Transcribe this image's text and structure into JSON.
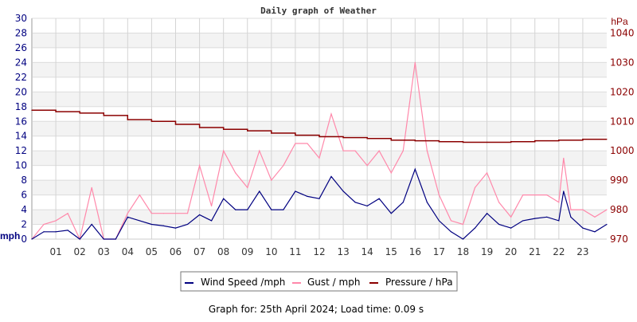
{
  "chart_data": {
    "type": "line",
    "title": "Daily graph of Weather",
    "left_axis": {
      "label": "mph",
      "range": [
        0,
        30
      ],
      "ticks": [
        0,
        2,
        4,
        6,
        8,
        10,
        12,
        14,
        16,
        18,
        20,
        22,
        24,
        26,
        28,
        30
      ],
      "color": "#000080"
    },
    "right_axis": {
      "label": "hPa",
      "range": [
        970,
        1045
      ],
      "ticks": [
        970,
        980,
        990,
        1000,
        1010,
        1020,
        1030,
        1040
      ],
      "color": "#8b0000"
    },
    "x_axis": {
      "range": [
        0,
        24
      ],
      "tick_labels": [
        "01",
        "02",
        "03",
        "04",
        "05",
        "06",
        "07",
        "08",
        "09",
        "10",
        "11",
        "12",
        "13",
        "14",
        "15",
        "16",
        "17",
        "18",
        "19",
        "20",
        "21",
        "22",
        "23"
      ]
    },
    "grid": true,
    "legend_position": "bottom",
    "series": [
      {
        "name": "Wind Speed /mph",
        "color": "#000080",
        "axis": "left",
        "x": [
          0,
          0.5,
          1,
          1.5,
          2,
          2.5,
          3,
          3.5,
          4,
          4.5,
          5,
          5.5,
          6,
          6.5,
          7,
          7.5,
          8,
          8.5,
          9,
          9.5,
          10,
          10.5,
          11,
          11.5,
          12,
          12.5,
          13,
          13.5,
          14,
          14.5,
          15,
          15.5,
          16,
          16.5,
          17,
          17.5,
          18,
          18.5,
          19,
          19.5,
          20,
          20.5,
          21,
          21.5,
          22,
          22.2,
          22.5,
          23,
          23.5,
          24
        ],
        "values": [
          0,
          1.0,
          1.0,
          1.2,
          0,
          2.0,
          0,
          0,
          3.0,
          2.5,
          2.0,
          1.8,
          1.5,
          2.0,
          3.3,
          2.5,
          5.5,
          4.0,
          4.0,
          6.5,
          4.0,
          4.0,
          6.5,
          5.8,
          5.5,
          8.5,
          6.5,
          5.0,
          4.5,
          5.5,
          3.5,
          5.0,
          9.5,
          5.0,
          2.5,
          1.0,
          0,
          1.5,
          3.5,
          2.0,
          1.5,
          2.5,
          2.8,
          3.0,
          2.5,
          6.5,
          3.0,
          1.5,
          1.0,
          2.0
        ]
      },
      {
        "name": "Gust / mph",
        "color": "#ff88aa",
        "axis": "left",
        "x": [
          0,
          0.5,
          1,
          1.5,
          2,
          2.5,
          3,
          3.5,
          4,
          4.5,
          5,
          5.5,
          6,
          6.5,
          7,
          7.5,
          8,
          8.5,
          9,
          9.5,
          10,
          10.5,
          11,
          11.5,
          12,
          12.5,
          13,
          13.5,
          14,
          14.5,
          15,
          15.5,
          16,
          16.5,
          17,
          17.5,
          18,
          18.5,
          19,
          19.5,
          20,
          20.5,
          21,
          21.5,
          22,
          22.2,
          22.5,
          23,
          23.5,
          24
        ],
        "values": [
          0,
          2,
          2.5,
          3.5,
          0,
          7,
          0,
          0,
          3.5,
          6,
          3.5,
          3.5,
          3.5,
          3.5,
          10,
          4.5,
          12,
          9,
          7,
          12,
          8,
          10,
          13,
          13,
          11,
          17,
          12,
          12,
          10,
          12,
          9,
          12,
          24,
          12,
          6,
          2.5,
          2,
          7,
          9,
          5,
          3,
          6,
          6,
          6,
          5,
          11,
          4,
          4,
          3,
          4
        ]
      },
      {
        "name": "Pressure / hPa",
        "color": "#8b0000",
        "axis": "right",
        "x": [
          0,
          1,
          2,
          3,
          4,
          5,
          6,
          7,
          8,
          9,
          10,
          11,
          12,
          13,
          14,
          15,
          16,
          17,
          18,
          19,
          20,
          21,
          22,
          23,
          24
        ],
        "values": [
          1013.8,
          1013.3,
          1012.8,
          1012,
          1010.6,
          1010,
          1009,
          1007.9,
          1007.3,
          1006.8,
          1006,
          1005.3,
          1004.8,
          1004.5,
          1004.2,
          1003.6,
          1003.4,
          1003.1,
          1002.9,
          1002.9,
          1003.1,
          1003.4,
          1003.6,
          1003.9,
          1003.9
        ]
      }
    ]
  },
  "footer": "Graph for: 25th April 2024; Load time: 0.09 s"
}
